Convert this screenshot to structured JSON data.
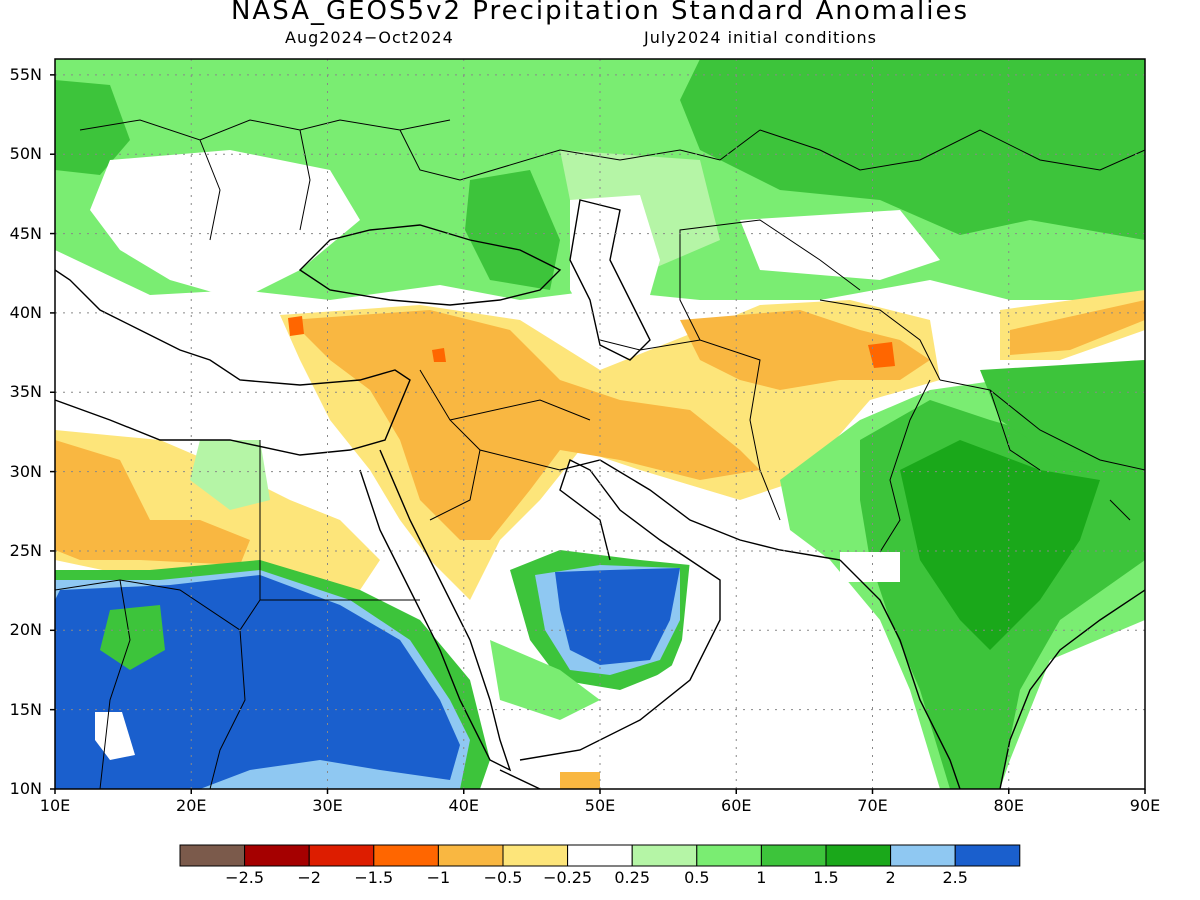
{
  "title": "NASA_GEOS5v2 Precipitation Standard Anomalies",
  "subtitle_left": "Aug2024−Oct2024",
  "subtitle_right": "July2024 initial conditions",
  "y_labels": [
    "55N",
    "50N",
    "45N",
    "40N",
    "35N",
    "30N",
    "25N",
    "20N",
    "15N",
    "10N"
  ],
  "x_labels": [
    "10E",
    "20E",
    "30E",
    "40E",
    "50E",
    "60E",
    "70E",
    "80E",
    "90E"
  ],
  "colorbar": {
    "colors": [
      "#7b5a4b",
      "#a50000",
      "#dd1d00",
      "#ff6600",
      "#f9b741",
      "#fde57a",
      "#ffffff",
      "#b5f5a6",
      "#7aed72",
      "#3dc43b",
      "#1aa81a",
      "#8fc8f2",
      "#1a5fcd"
    ],
    "labels": [
      "−2.5",
      "−2",
      "−1.5",
      "−1",
      "−0.5",
      "−0.25",
      "0.25",
      "0.5",
      "1",
      "1.5",
      "2",
      "2.5"
    ]
  },
  "map_extent": {
    "lon": [
      10,
      90
    ],
    "lat": [
      10,
      56
    ]
  }
}
